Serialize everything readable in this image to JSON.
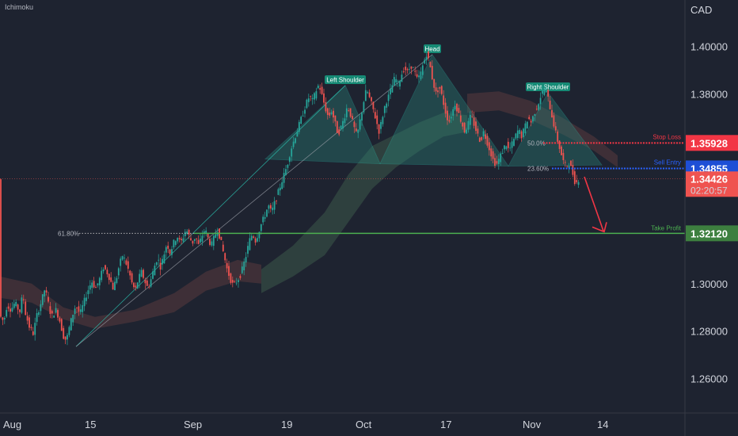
{
  "header": {
    "indicator": "Ichimoku",
    "currency": "CAD"
  },
  "colors": {
    "background": "#1e2330",
    "up": "#26a69a",
    "down": "#ef5350",
    "pattern_fill": "#2a8a7e",
    "stop_loss": "#f23645",
    "sell_entry": "#2962ff",
    "take_profit": "#4caf50",
    "cloud_bull": "#3d5a4a",
    "cloud_bear": "#5a3a3e",
    "arrow": "#f23645"
  },
  "chart_data": {
    "type": "candlestick",
    "ylim": [
      1.2455,
      1.4195
    ],
    "y_ticks": [
      "1.40000",
      "1.38000",
      "1.30000",
      "1.28000",
      "1.26000"
    ],
    "x_ticks": [
      "Aug",
      "15",
      "Sep",
      "19",
      "Oct",
      "17",
      "Nov",
      "14"
    ],
    "pattern_labels": {
      "left_shoulder": "Left Shoulder",
      "head": "Head",
      "right_shoulder": "Right Shoulder"
    },
    "levels": {
      "stop_loss": {
        "label": "Stop Loss",
        "price": "1.35928",
        "value": 1.35928
      },
      "sell_entry": {
        "label": "Sell Entry",
        "price": "1.34855",
        "value": 1.34855
      },
      "take_profit": {
        "label": "Take Profit",
        "price": "1.32120",
        "value": 1.3212
      }
    },
    "current_price": {
      "price": "1.34426",
      "countdown": "02:20:57",
      "value": 1.34426
    },
    "fib_labels": {
      "f618": "61.80%",
      "f500": "50.0%",
      "f236": "23.60%"
    },
    "price_path": [
      [
        0,
        1.287
      ],
      [
        6,
        1.284
      ],
      [
        10,
        1.291
      ],
      [
        15,
        1.289
      ],
      [
        20,
        1.292
      ],
      [
        26,
        1.288
      ],
      [
        30,
        1.296
      ],
      [
        33,
        1.288
      ],
      [
        38,
        1.282
      ],
      [
        43,
        1.279
      ],
      [
        48,
        1.287
      ],
      [
        53,
        1.292
      ],
      [
        58,
        1.298
      ],
      [
        62,
        1.292
      ],
      [
        66,
        1.286
      ],
      [
        72,
        1.289
      ],
      [
        77,
        1.284
      ],
      [
        81,
        1.278
      ],
      [
        85,
        1.276
      ],
      [
        89,
        1.282
      ],
      [
        93,
        1.287
      ],
      [
        97,
        1.291
      ],
      [
        102,
        1.287
      ],
      [
        107,
        1.292
      ],
      [
        112,
        1.297
      ],
      [
        117,
        1.301
      ],
      [
        122,
        1.298
      ],
      [
        127,
        1.302
      ],
      [
        132,
        1.307
      ],
      [
        136,
        1.305
      ],
      [
        140,
        1.302
      ],
      [
        144,
        1.298
      ],
      [
        148,
        1.302
      ],
      [
        152,
        1.308
      ],
      [
        156,
        1.312
      ],
      [
        160,
        1.309
      ],
      [
        164,
        1.305
      ],
      [
        168,
        1.3
      ],
      [
        172,
        1.297
      ],
      [
        176,
        1.302
      ],
      [
        180,
        1.305
      ],
      [
        184,
        1.301
      ],
      [
        188,
        1.298
      ],
      [
        192,
        1.302
      ],
      [
        196,
        1.307
      ],
      [
        200,
        1.311
      ],
      [
        204,
        1.307
      ],
      [
        208,
        1.312
      ],
      [
        212,
        1.317
      ],
      [
        216,
        1.313
      ],
      [
        220,
        1.317
      ],
      [
        225,
        1.32
      ],
      [
        229,
        1.317
      ],
      [
        233,
        1.32
      ],
      [
        236,
        1.323
      ],
      [
        240,
        1.32
      ],
      [
        244,
        1.317
      ],
      [
        248,
        1.32
      ],
      [
        252,
        1.316
      ],
      [
        256,
        1.32
      ],
      [
        260,
        1.323
      ],
      [
        264,
        1.319
      ],
      [
        268,
        1.316
      ],
      [
        272,
        1.32
      ],
      [
        276,
        1.323
      ],
      [
        280,
        1.318
      ],
      [
        284,
        1.312
      ],
      [
        288,
        1.306
      ],
      [
        292,
        1.302
      ],
      [
        296,
        1.299
      ],
      [
        300,
        1.301
      ],
      [
        304,
        1.303
      ],
      [
        308,
        1.307
      ],
      [
        312,
        1.312
      ],
      [
        316,
        1.318
      ],
      [
        320,
        1.321
      ],
      [
        324,
        1.318
      ],
      [
        328,
        1.322
      ],
      [
        332,
        1.326
      ],
      [
        336,
        1.329
      ],
      [
        340,
        1.333
      ],
      [
        344,
        1.33
      ],
      [
        348,
        1.334
      ],
      [
        352,
        1.338
      ],
      [
        356,
        1.342
      ],
      [
        360,
        1.346
      ],
      [
        364,
        1.35
      ],
      [
        368,
        1.356
      ],
      [
        372,
        1.36
      ],
      [
        376,
        1.364
      ],
      [
        380,
        1.368
      ],
      [
        384,
        1.372
      ],
      [
        388,
        1.376
      ],
      [
        392,
        1.379
      ],
      [
        396,
        1.377
      ],
      [
        400,
        1.381
      ],
      [
        404,
        1.384
      ],
      [
        408,
        1.379
      ],
      [
        412,
        1.374
      ],
      [
        416,
        1.37
      ],
      [
        420,
        1.373
      ],
      [
        424,
        1.368
      ],
      [
        428,
        1.363
      ],
      [
        432,
        1.366
      ],
      [
        436,
        1.37
      ],
      [
        440,
        1.375
      ],
      [
        444,
        1.371
      ],
      [
        448,
        1.366
      ],
      [
        452,
        1.362
      ],
      [
        456,
        1.369
      ],
      [
        460,
        1.376
      ],
      [
        464,
        1.382
      ],
      [
        468,
        1.378
      ],
      [
        472,
        1.374
      ],
      [
        476,
        1.369
      ],
      [
        480,
        1.364
      ],
      [
        484,
        1.37
      ],
      [
        488,
        1.376
      ],
      [
        492,
        1.379
      ],
      [
        496,
        1.383
      ],
      [
        500,
        1.387
      ],
      [
        504,
        1.384
      ],
      [
        508,
        1.388
      ],
      [
        512,
        1.391
      ],
      [
        516,
        1.389
      ],
      [
        520,
        1.392
      ],
      [
        524,
        1.39
      ],
      [
        528,
        1.386
      ],
      [
        532,
        1.388
      ],
      [
        536,
        1.393
      ],
      [
        540,
        1.397
      ],
      [
        544,
        1.392
      ],
      [
        548,
        1.385
      ],
      [
        552,
        1.38
      ],
      [
        556,
        1.383
      ],
      [
        560,
        1.378
      ],
      [
        564,
        1.372
      ],
      [
        568,
        1.368
      ],
      [
        572,
        1.372
      ],
      [
        576,
        1.376
      ],
      [
        580,
        1.372
      ],
      [
        584,
        1.368
      ],
      [
        588,
        1.364
      ],
      [
        592,
        1.367
      ],
      [
        596,
        1.371
      ],
      [
        600,
        1.367
      ],
      [
        604,
        1.363
      ],
      [
        608,
        1.36
      ],
      [
        612,
        1.364
      ],
      [
        616,
        1.36
      ],
      [
        620,
        1.356
      ],
      [
        624,
        1.352
      ],
      [
        628,
        1.35
      ],
      [
        632,
        1.353
      ],
      [
        636,
        1.356
      ],
      [
        640,
        1.359
      ],
      [
        644,
        1.356
      ],
      [
        648,
        1.359
      ],
      [
        652,
        1.362
      ],
      [
        656,
        1.365
      ],
      [
        660,
        1.362
      ],
      [
        664,
        1.366
      ],
      [
        668,
        1.37
      ],
      [
        672,
        1.368
      ],
      [
        676,
        1.372
      ],
      [
        680,
        1.375
      ],
      [
        684,
        1.379
      ],
      [
        688,
        1.382
      ],
      [
        692,
        1.38
      ],
      [
        696,
        1.374
      ],
      [
        700,
        1.368
      ],
      [
        704,
        1.362
      ],
      [
        708,
        1.357
      ],
      [
        712,
        1.352
      ],
      [
        716,
        1.349
      ],
      [
        720,
        1.351
      ],
      [
        724,
        1.347
      ],
      [
        728,
        1.342
      ],
      [
        732,
        1.344
      ]
    ]
  }
}
